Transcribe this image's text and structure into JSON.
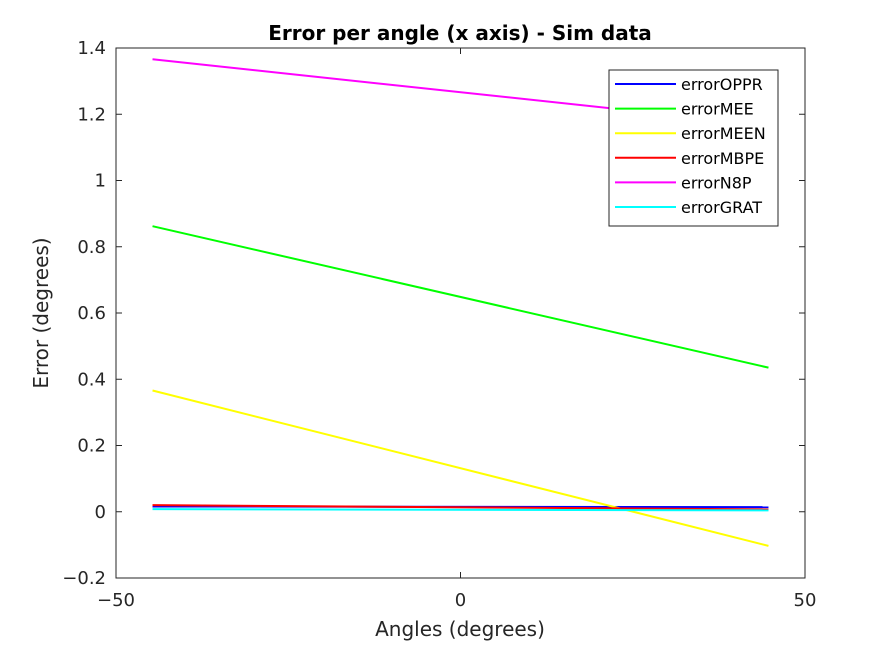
{
  "chart_data": {
    "type": "line",
    "title": "Error per angle (x axis)  - Sim data",
    "xlabel": "Angles (degrees)",
    "ylabel": "Error (degrees)",
    "xlim": [
      -50,
      50
    ],
    "ylim": [
      -0.2,
      1.4
    ],
    "xticks": [
      -50,
      0,
      50
    ],
    "xtick_labels": [
      "−50",
      "0",
      "50"
    ],
    "yticks": [
      -0.2,
      0,
      0.2,
      0.4,
      0.6,
      0.8,
      1,
      1.2,
      1.4
    ],
    "ytick_labels": [
      "−0.2",
      "0",
      "0.2",
      "0.4",
      "0.6",
      "0.8",
      "1",
      "1.2",
      "1.4"
    ],
    "grid": false,
    "legend_position": "top-right",
    "x": [
      -44.7,
      44.7
    ],
    "series": [
      {
        "name": "errorOPPR",
        "color": "#0000ff",
        "values": [
          0.016,
          0.014
        ]
      },
      {
        "name": "errorMEE",
        "color": "#00ff00",
        "values": [
          0.862,
          0.435
        ]
      },
      {
        "name": "errorMEEN",
        "color": "#ffff00",
        "values": [
          0.366,
          -0.103
        ]
      },
      {
        "name": "errorMBPE",
        "color": "#ff0000",
        "values": [
          0.02,
          0.007
        ]
      },
      {
        "name": "errorN8P",
        "color": "#ff00ff",
        "values": [
          1.366,
          1.167
        ]
      },
      {
        "name": "errorGRAT",
        "color": "#00ffff",
        "values": [
          0.008,
          0.004
        ]
      }
    ]
  }
}
